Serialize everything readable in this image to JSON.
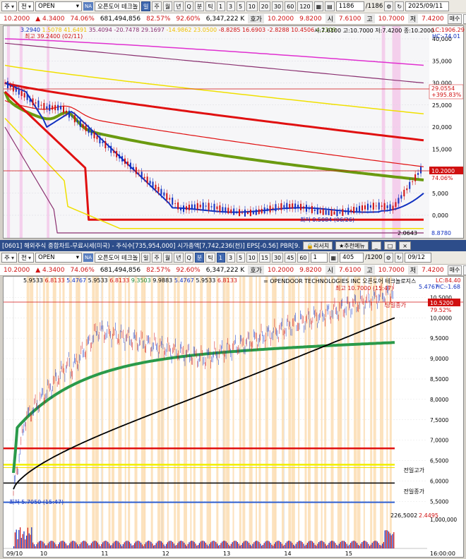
{
  "top_toolbar": {
    "type_select": "주",
    "market_select": "전",
    "symbol": "OPEN",
    "na_badge": "NA",
    "stock_name": "오픈도어 테크놀",
    "periods": [
      "일",
      "주",
      "월",
      "년",
      "Q",
      "분",
      "틱"
    ],
    "active_period": "일",
    "minutes": [
      "1",
      "3",
      "5",
      "10",
      "20",
      "30",
      "60",
      "120"
    ],
    "count": "1186",
    "total": "/1186",
    "date": "2025/09/11"
  },
  "quote": {
    "price": "10.2000",
    "change": "▲ 4.3400",
    "pct": "74.06%",
    "volume": "681,494,856",
    "vol_ratio": "82.57%",
    "turnover_ratio": "92.60%",
    "amount": "6,347,222 K",
    "ask_lbl": "호가",
    "ask": "10.2000",
    "bid": "9.8200",
    "open_lbl": "시",
    "open": "7.6100",
    "high_lbl": "고",
    "high": "10.7000",
    "low_lbl": "저",
    "low": "7.4200",
    "buy": "매수",
    "sell": "매도",
    "flat": "평"
  },
  "chart1": {
    "legend": [
      {
        "text": "3.2940",
        "color": "#1030c0"
      },
      {
        "text": "1.5078",
        "color": "#f0c000"
      },
      {
        "text": "41.6491",
        "color": "#f0c000"
      },
      {
        "text": "35.4094",
        "color": "#8a3070"
      },
      {
        "text": "-20.7478",
        "color": "#8a3070"
      },
      {
        "text": "29.1697",
        "color": "#8a3070"
      },
      {
        "text": "-14.9862",
        "color": "#f0c000"
      },
      {
        "text": "23.0500",
        "color": "#f0c000"
      },
      {
        "text": "-8.8285",
        "color": "#d01010"
      },
      {
        "text": "16.6903",
        "color": "#d01010"
      },
      {
        "text": "-2.8288",
        "color": "#d01010"
      },
      {
        "text": "10.4506",
        "color": "#d01010"
      },
      {
        "text": "4.2109",
        "color": "#5a8a10"
      }
    ],
    "ohlc_text": "시:7.6100 고:10.7000 저:7.4200 종:10.2000",
    "lc": "LC:1906.29",
    "hc": "HC:-74.01",
    "high_label": "최고 39.2400 (02/11)",
    "low_label": "최저 0.5084 (06/26)",
    "y_ticks": [
      "40,000",
      "35,000",
      "30,000",
      "25,000",
      "20,000",
      "15,000",
      "10,000",
      "5,000",
      "0,000"
    ],
    "crosshair_value": "29.0554",
    "crosshair_pct": "+395.83%",
    "price_tag": "10.2000",
    "price_pct": "74.06%",
    "bottom_left": "2.0643",
    "bottom_right": "8.8780"
  },
  "window2_title": {
    "text": "[0601] 해외주식 종합차트-무료시세(미국) - 주식수[735,954,000] 시가총액[7,742,236(천)] EPS[-0.56] PBR[9.",
    "research": "리서치",
    "recommend": "추천메뉴"
  },
  "toolbar2": {
    "type_select": "주",
    "market_select": "전",
    "symbol": "OPEN",
    "na_badge": "NA",
    "stock_name": "오픈도어 테크놀",
    "periods": [
      "일",
      "주",
      "월",
      "년",
      "Q",
      "분",
      "틱"
    ],
    "active_period": "분",
    "minutes": [
      "1",
      "3",
      "5",
      "10",
      "15",
      "30",
      "45",
      "60"
    ],
    "interval": "1",
    "count": "405",
    "total": "/1200",
    "date": "09/12"
  },
  "quote2": {
    "price": "10.2000",
    "change": "▲ 4.3400",
    "pct": "74.06%",
    "volume": "681,494,856",
    "vol_ratio": "82.57%",
    "turnover_ratio": "92.60%",
    "amount": "6,347,222 K",
    "ask_lbl": "호가",
    "ask": "10.2000",
    "bid": "9.8200",
    "open_lbl": "시",
    "open": "7.6100",
    "high_lbl": "고",
    "high": "10.7000",
    "low_lbl": "저",
    "low": "7.4200",
    "buy": "매수",
    "sell": "매도",
    "flat": "평"
  },
  "chart2": {
    "legend": [
      {
        "text": "5.9533",
        "color": "#000"
      },
      {
        "text": "6.8133",
        "color": "#d01010"
      },
      {
        "text": "5.4767",
        "color": "#1030c0"
      },
      {
        "text": "5.9533",
        "color": "#000"
      },
      {
        "text": "6.8133",
        "color": "#d01010"
      },
      {
        "text": "9.3503",
        "color": "#1a8a3a"
      },
      {
        "text": "9.9883",
        "color": "#000"
      },
      {
        "text": "5.4767",
        "color": "#1030c0"
      },
      {
        "text": "5.9533",
        "color": "#000"
      },
      {
        "text": "6.8133",
        "color": "#d01010"
      }
    ],
    "company": "= OPENDOOR TECHNOLOGIES INC  오픈도어 테크놀로지스",
    "lc": "LC:84.40",
    "hc": "HC:-1.68",
    "lc_sub": "5.4767",
    "high_label": "최고 10.7000 (15:47)",
    "low_label": "최저 5.7050 (15:47)",
    "today_high": "당일종가",
    "price_tag": "10.5200",
    "price_pct": "79.52%",
    "prev_high": "전일고가",
    "prev_close": "전일종가",
    "y_ticks": [
      "10,5000",
      "10,0000",
      "9,5000",
      "9,0000",
      "8,5000",
      "8,0000",
      "7,5000",
      "7,0000",
      "6,5000",
      "6,0000",
      "5,5000"
    ],
    "vol_readout": "226,5002",
    "vol_readout2": "2.4495",
    "vol_tick": "1,000,000",
    "x_labels": [
      "09/10",
      "10",
      "11",
      "12",
      "13",
      "14",
      "15",
      "16:00:00"
    ]
  }
}
